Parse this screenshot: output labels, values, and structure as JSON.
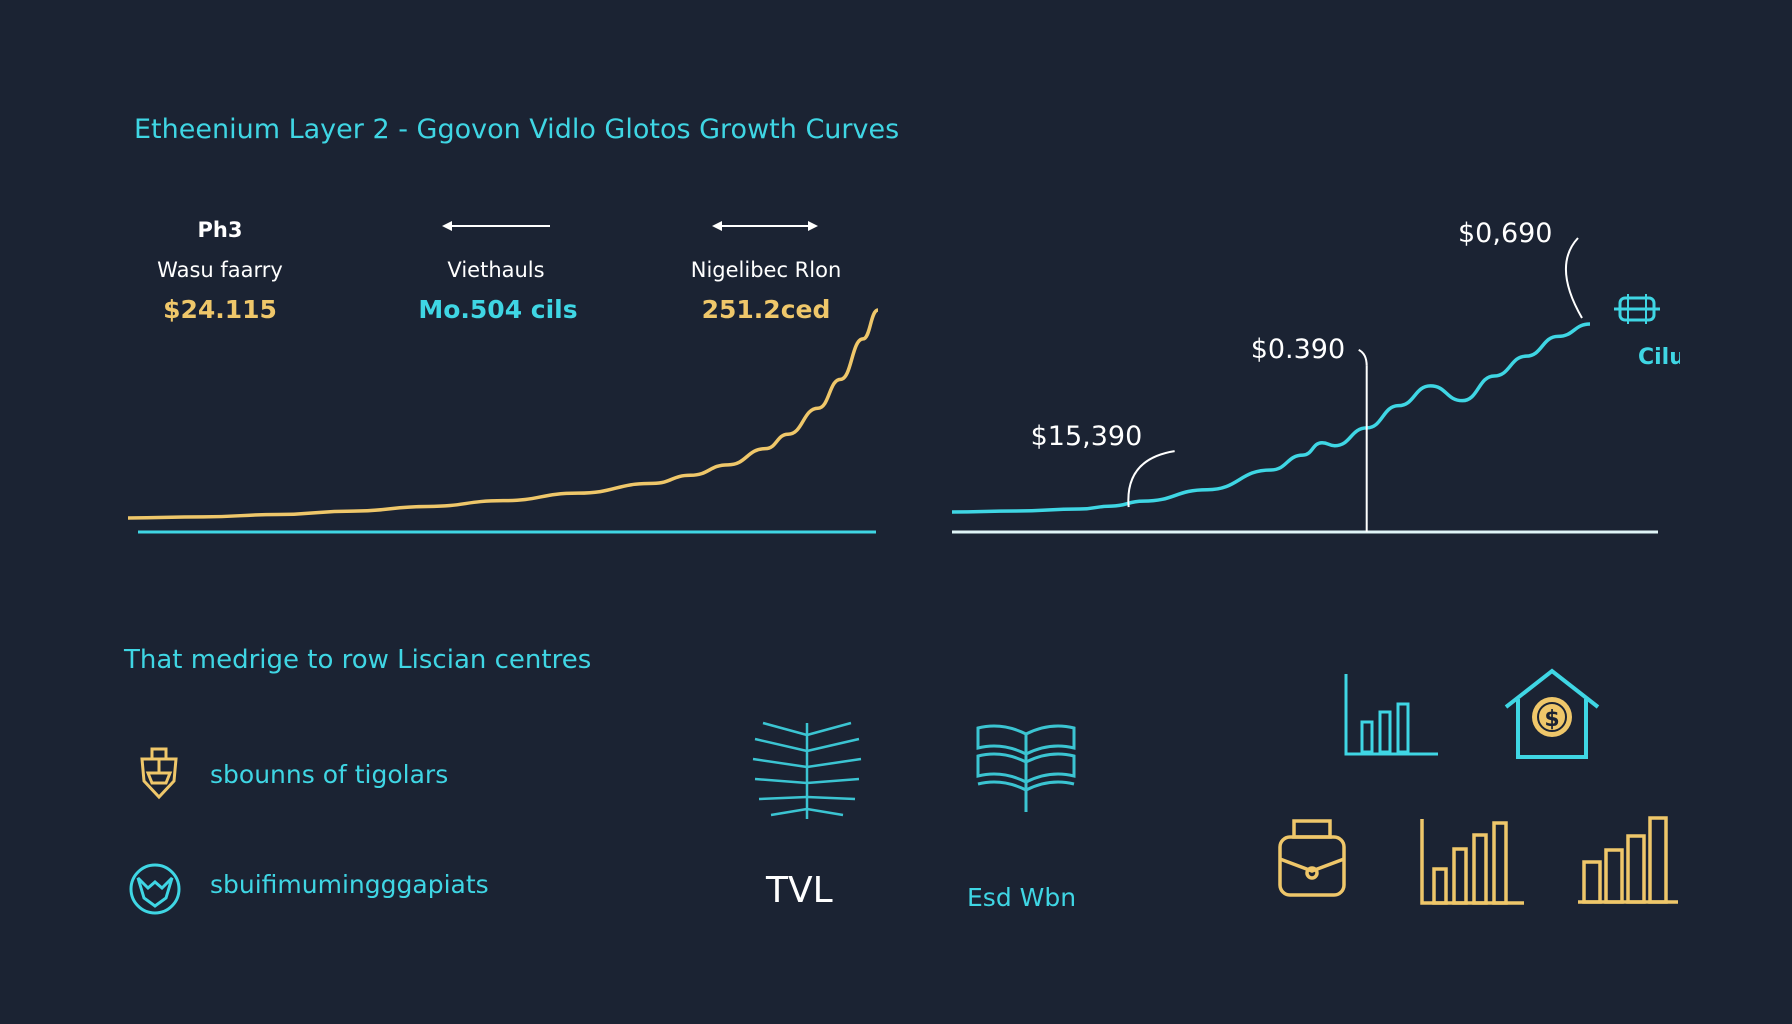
{
  "title": "Etheenium Layer 2 - Ggovon Vidlo Glotos Growth Curves",
  "metrics": {
    "header": "Ph3",
    "items": [
      {
        "label": "Wasu faarry",
        "value": "$24.115",
        "color": "#efc76a"
      },
      {
        "label": "Viethauls",
        "value": "Mo.504 cils",
        "color": "#3fd6e4"
      },
      {
        "label": "Nigelibec Rlon",
        "value": "251.2ced",
        "color": "#efc76a"
      }
    ]
  },
  "chart_data": [
    {
      "type": "line",
      "title": "",
      "series": [
        {
          "color": "#efc76a",
          "x": [
            0,
            10,
            20,
            30,
            40,
            50,
            60,
            70,
            75,
            80,
            85,
            88,
            92,
            95,
            98,
            100
          ],
          "y": [
            0,
            0.2,
            0.6,
            1.2,
            2.0,
            3.0,
            4.3,
            6.0,
            7.4,
            9.2,
            12.0,
            14.5,
            19.0,
            24.0,
            31.0,
            36.0
          ]
        }
      ],
      "baseline_color": "#3fd6e4"
    },
    {
      "type": "line",
      "series": [
        {
          "color": "#3fd6e4",
          "x": [
            0,
            10,
            20,
            25,
            30,
            40,
            50,
            55,
            58,
            60,
            65,
            70,
            75,
            80,
            85,
            90,
            95,
            100
          ],
          "y": [
            0,
            0.2,
            0.6,
            1.2,
            2.2,
            4.5,
            8.5,
            11.5,
            14.0,
            13.4,
            17.0,
            21.5,
            25.5,
            22.5,
            27.5,
            31.5,
            35.5,
            38.0
          ]
        }
      ],
      "annotations": [
        {
          "label": "$15,390",
          "x": 28
        },
        {
          "label": "$0.390",
          "x": 65
        },
        {
          "label": "$0,690",
          "x": 100
        }
      ],
      "end_label": "Cilu"
    }
  ],
  "section_title": "That medrige to row Liscian centres",
  "features": [
    {
      "text": "sbounns of tigolars",
      "icon": "shield-ship-icon"
    },
    {
      "text": "sbuifimumingggapiats",
      "icon": "fox-badge-icon"
    }
  ],
  "tiles": [
    {
      "label": "TVL",
      "icon": "fern-leaf-icon"
    },
    {
      "label": "Esd Wbn",
      "icon": "open-book-stack-icon"
    }
  ]
}
